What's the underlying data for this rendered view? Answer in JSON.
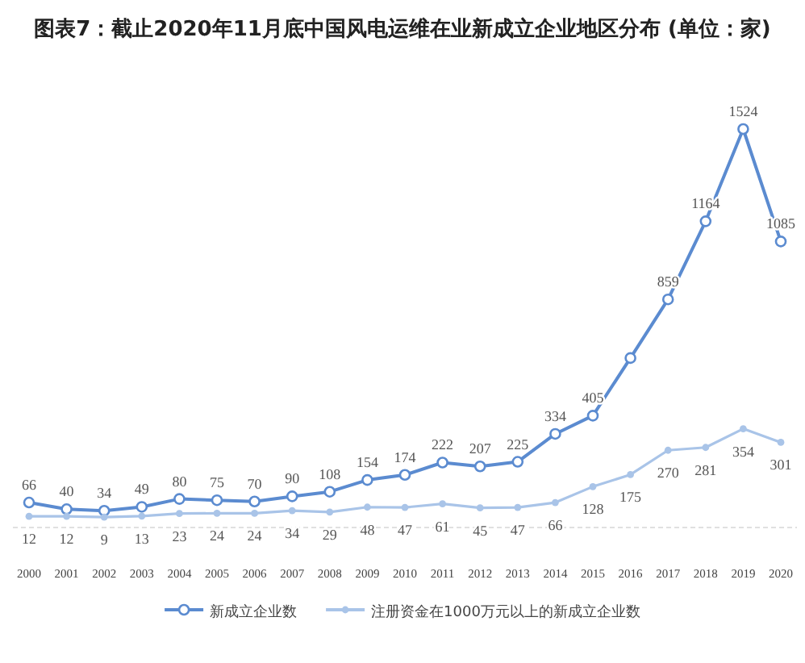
{
  "chart_data": {
    "type": "line",
    "title": "图表7：截止2020年11月底中国风电运维在业新成立企业地区分布 (单位：家)",
    "categories": [
      "2000",
      "2001",
      "2002",
      "2003",
      "2004",
      "2005",
      "2006",
      "2007",
      "2008",
      "2009",
      "2010",
      "2011",
      "2012",
      "2013",
      "2014",
      "2015",
      "2016",
      "2017",
      "2018",
      "2019",
      "2020"
    ],
    "series": [
      {
        "name": "新成立企业数",
        "color": "#5b8bd0",
        "marker": "circle",
        "values": [
          66,
          40,
          34,
          49,
          80,
          75,
          70,
          90,
          108,
          154,
          174,
          222,
          207,
          225,
          334,
          405,
          630,
          859,
          1164,
          1524,
          1085
        ],
        "value_labels": [
          "66",
          "40",
          "34",
          "49",
          "80",
          "75",
          "70",
          "90",
          "108",
          "154",
          "174",
          "222",
          "207",
          "225",
          "334",
          "405",
          null,
          "859",
          "1164",
          "1524",
          "1085"
        ]
      },
      {
        "name": "注册资金在1000万元以上的新成立企业数",
        "color": "#a9c4e8",
        "marker": "circle",
        "values": [
          12,
          12,
          9,
          13,
          23,
          24,
          24,
          34,
          29,
          48,
          47,
          61,
          45,
          47,
          66,
          128,
          175,
          270,
          281,
          354,
          301
        ],
        "value_labels": [
          "12",
          "12",
          "9",
          "13",
          "23",
          "24",
          "24",
          "34",
          "29",
          "48",
          "47",
          "61",
          "45",
          "47",
          "66",
          "128",
          "175",
          "270",
          "281",
          "354",
          "301"
        ]
      }
    ],
    "legend": "bottom",
    "grid": false
  }
}
